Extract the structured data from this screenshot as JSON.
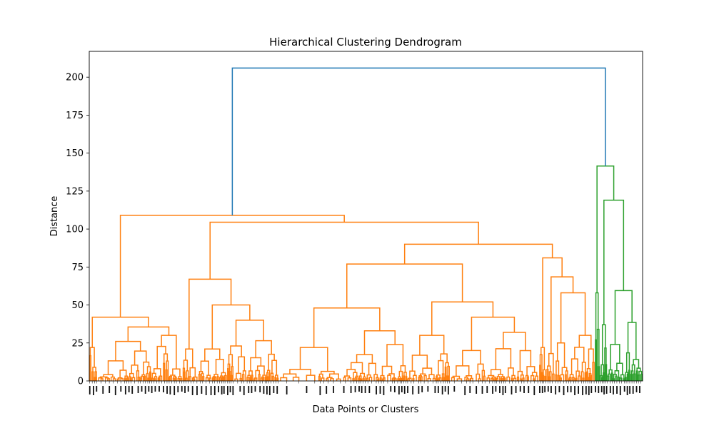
{
  "chart_data": {
    "type": "dendrogram",
    "title": "Hierarchical Clustering Dendrogram",
    "xlabel": "Data Points or Clusters",
    "ylabel": "Distance",
    "ylim": [
      0,
      217
    ],
    "yticks": [
      0,
      25,
      50,
      75,
      100,
      125,
      150,
      175,
      200
    ],
    "grid": false,
    "colors": {
      "root": "#1f77b4",
      "cluster_1": "#ff7f0e",
      "cluster_2": "#2ca02c"
    },
    "root_merge_height": 206,
    "clusters": [
      {
        "name": "",
        "color": "#ff7f0e",
        "merge_height": 109,
        "subclusters": [
          {
            "merge_height": 42
          },
          {
            "merge_height": 104.5,
            "children": [
              67,
              90
            ]
          }
        ]
      },
      {
        "name": "",
        "color": "#2ca02c",
        "merge_height": 141.5,
        "children": [
          58,
          119
        ]
      }
    ]
  }
}
